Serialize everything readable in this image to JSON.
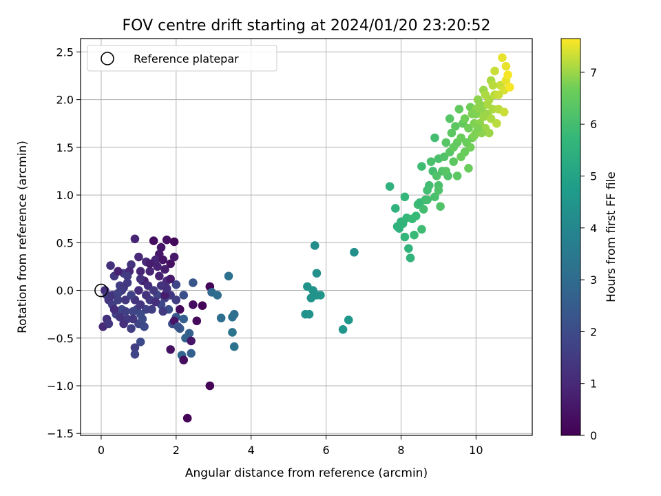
{
  "chart_data": {
    "type": "scatter",
    "title": "FOV centre drift starting at 2024/01/20 23:20:52",
    "xlabel": "Angular distance from reference (arcmin)",
    "ylabel": "Rotation from reference (arcmin)",
    "xlim": [
      -0.55,
      11.5
    ],
    "ylim": [
      -1.52,
      2.64
    ],
    "xticks": [
      0,
      2,
      4,
      6,
      8,
      10
    ],
    "xtick_labels": [
      "0",
      "2",
      "4",
      "6",
      "8",
      "10"
    ],
    "yticks": [
      -1.5,
      -1.0,
      -0.5,
      0.0,
      0.5,
      1.0,
      1.5,
      2.0,
      2.5
    ],
    "ytick_labels": [
      "−1.5",
      "−1.0",
      "−0.5",
      "0.0",
      "0.5",
      "1.0",
      "1.5",
      "2.0",
      "2.5"
    ],
    "grid": true,
    "legend": {
      "placement": "upper-left",
      "entries": [
        "Reference platepar"
      ]
    },
    "reference_point": {
      "x": 0.0,
      "y": 0.0
    },
    "colorbar": {
      "label": "Hours from first FF file",
      "range": [
        0,
        7.65
      ],
      "ticks": [
        0,
        1,
        2,
        3,
        4,
        5,
        6,
        7
      ],
      "tick_labels": [
        "0",
        "1",
        "2",
        "3",
        "4",
        "5",
        "6",
        "7"
      ],
      "colormap": "viridis"
    },
    "points": [
      [
        1.4,
        0.52,
        0.3
      ],
      [
        1.75,
        0.53,
        0.4
      ],
      [
        1.95,
        0.51,
        0.2
      ],
      [
        1.6,
        0.45,
        0.5
      ],
      [
        0.9,
        0.54,
        0.9
      ],
      [
        1.0,
        0.35,
        1.0
      ],
      [
        1.55,
        0.38,
        0.6
      ],
      [
        1.7,
        0.22,
        0.7
      ],
      [
        1.85,
        0.28,
        0.4
      ],
      [
        1.45,
        0.32,
        0.9
      ],
      [
        1.2,
        0.3,
        1.0
      ],
      [
        0.8,
        0.27,
        1.3
      ],
      [
        0.6,
        0.18,
        1.5
      ],
      [
        0.35,
        0.15,
        1.4
      ],
      [
        0.5,
        0.05,
        1.6
      ],
      [
        0.7,
        0.08,
        1.5
      ],
      [
        1.1,
        0.1,
        1.2
      ],
      [
        1.3,
        0.2,
        0.9
      ],
      [
        1.55,
        0.15,
        0.8
      ],
      [
        1.75,
        0.1,
        1.0
      ],
      [
        2.0,
        0.06,
        1.8
      ],
      [
        2.2,
        -0.05,
        2.1
      ],
      [
        2.45,
        0.08,
        2.3
      ],
      [
        0.1,
        0.0,
        1.1
      ],
      [
        0.2,
        -0.1,
        1.3
      ],
      [
        0.3,
        -0.15,
        1.6
      ],
      [
        0.15,
        -0.3,
        1.2
      ],
      [
        0.05,
        -0.38,
        1.0
      ],
      [
        0.2,
        -0.35,
        1.4
      ],
      [
        0.4,
        -0.25,
        1.7
      ],
      [
        0.55,
        -0.2,
        1.9
      ],
      [
        0.7,
        -0.3,
        1.5
      ],
      [
        0.6,
        -0.35,
        1.2
      ],
      [
        0.8,
        -0.4,
        1.6
      ],
      [
        1.0,
        -0.35,
        1.8
      ],
      [
        1.1,
        -0.3,
        2.0
      ],
      [
        1.2,
        -0.2,
        1.7
      ],
      [
        0.9,
        -0.1,
        1.3
      ],
      [
        1.0,
        0.0,
        1.1
      ],
      [
        1.3,
        -0.1,
        1.5
      ],
      [
        1.5,
        -0.05,
        1.8
      ],
      [
        1.6,
        -0.15,
        1.9
      ],
      [
        1.8,
        -0.2,
        2.1
      ],
      [
        1.9,
        -0.35,
        2.0
      ],
      [
        2.0,
        -0.28,
        2.4
      ],
      [
        2.1,
        -0.4,
        2.5
      ],
      [
        2.2,
        -0.3,
        2.6
      ],
      [
        2.35,
        -0.45,
        2.6
      ],
      [
        2.25,
        -0.5,
        2.7
      ],
      [
        2.4,
        -0.53,
        0.5
      ],
      [
        2.4,
        -0.66,
        2.6
      ],
      [
        2.15,
        -0.68,
        2.8
      ],
      [
        2.2,
        -0.73,
        0.3
      ],
      [
        1.85,
        -0.62,
        0.4
      ],
      [
        0.9,
        -0.6,
        1.6
      ],
      [
        0.9,
        -0.67,
        1.8
      ],
      [
        1.05,
        -0.54,
        1.9
      ],
      [
        1.95,
        -0.32,
        0.5
      ],
      [
        2.1,
        -0.2,
        0.2
      ],
      [
        2.45,
        -0.15,
        0.3
      ],
      [
        2.7,
        -0.16,
        0.1
      ],
      [
        2.55,
        -0.32,
        0.2
      ],
      [
        2.9,
        0.04,
        0.1
      ],
      [
        2.95,
        -0.02,
        2.9
      ],
      [
        3.1,
        -0.05,
        3.0
      ],
      [
        3.2,
        -0.29,
        3.1
      ],
      [
        3.4,
        0.15,
        3.2
      ],
      [
        3.5,
        -0.44,
        3.3
      ],
      [
        3.55,
        -0.25,
        3.1
      ],
      [
        3.5,
        -0.28,
        3.2
      ],
      [
        3.55,
        -0.59,
        3.3
      ],
      [
        2.9,
        -1.0,
        0.1
      ],
      [
        2.3,
        -1.34,
        0.1
      ],
      [
        0.25,
        0.26,
        1.2
      ],
      [
        0.45,
        0.2,
        0.8
      ],
      [
        0.6,
        0.03,
        1.4
      ],
      [
        0.75,
        0.2,
        1.0
      ],
      [
        1.05,
        0.2,
        0.9
      ],
      [
        1.15,
        0.1,
        0.7
      ],
      [
        1.25,
        0.05,
        1.1
      ],
      [
        1.4,
        0.0,
        1.4
      ],
      [
        1.6,
        0.05,
        1.3
      ],
      [
        1.85,
        -0.05,
        1.4
      ],
      [
        0.15,
        -0.05,
        1.5
      ],
      [
        0.3,
        -0.05,
        1.3
      ],
      [
        0.45,
        -0.1,
        1.6
      ],
      [
        0.55,
        0.0,
        1.5
      ],
      [
        0.65,
        -0.1,
        1.4
      ],
      [
        0.8,
        -0.05,
        1.7
      ],
      [
        0.95,
        -0.2,
        1.6
      ],
      [
        1.05,
        -0.15,
        1.4
      ],
      [
        1.2,
        -0.05,
        1.3
      ],
      [
        1.35,
        -0.2,
        1.6
      ],
      [
        1.45,
        -0.12,
        1.2
      ],
      [
        1.65,
        -0.22,
        1.5
      ],
      [
        1.7,
        -0.08,
        1.7
      ],
      [
        0.35,
        -0.2,
        1.1
      ],
      [
        0.5,
        -0.28,
        1.3
      ],
      [
        0.65,
        -0.22,
        1.6
      ],
      [
        0.85,
        -0.22,
        1.8
      ],
      [
        1.05,
        -0.25,
        2.0
      ],
      [
        1.15,
        -0.38,
        1.9
      ],
      [
        0.85,
        -0.3,
        1.4
      ],
      [
        1.7,
        -0.05,
        0.7
      ],
      [
        1.85,
        0.12,
        0.6
      ],
      [
        1.3,
        0.28,
        0.7
      ],
      [
        1.5,
        0.25,
        0.8
      ],
      [
        1.95,
        0.35,
        0.6
      ],
      [
        1.65,
        0.32,
        0.5
      ],
      [
        1.75,
        0.02,
        1.2
      ],
      [
        2.0,
        -0.1,
        1.6
      ],
      [
        2.05,
        -0.38,
        2.2
      ],
      [
        1.05,
        0.12,
        1.2
      ],
      [
        0.7,
        0.15,
        1.5
      ],
      [
        0.45,
        -0.03,
        1.7
      ],
      [
        5.7,
        0.47,
        4.2
      ],
      [
        5.75,
        0.18,
        4.3
      ],
      [
        6.75,
        0.4,
        4.3
      ],
      [
        5.5,
        0.04,
        4.4
      ],
      [
        5.65,
        0.0,
        4.4
      ],
      [
        5.6,
        -0.08,
        4.4
      ],
      [
        5.85,
        -0.05,
        4.5
      ],
      [
        5.75,
        -0.05,
        4.4
      ],
      [
        5.45,
        -0.25,
        4.4
      ],
      [
        5.55,
        -0.25,
        4.4
      ],
      [
        6.6,
        -0.31,
        4.5
      ],
      [
        6.45,
        -0.41,
        4.5
      ],
      [
        7.7,
        1.09,
        5.5
      ],
      [
        7.85,
        0.86,
        5.5
      ],
      [
        7.9,
        0.67,
        5.5
      ],
      [
        7.95,
        0.65,
        5.5
      ],
      [
        8.0,
        0.72,
        5.6
      ],
      [
        8.05,
        0.7,
        5.6
      ],
      [
        8.1,
        0.98,
        5.7
      ],
      [
        8.15,
        0.76,
        5.7
      ],
      [
        8.1,
        0.56,
        5.7
      ],
      [
        8.2,
        0.44,
        5.6
      ],
      [
        8.25,
        0.34,
        5.6
      ],
      [
        8.3,
        0.75,
        5.8
      ],
      [
        8.35,
        0.58,
        5.8
      ],
      [
        8.45,
        0.9,
        5.9
      ],
      [
        8.5,
        0.92,
        5.8
      ],
      [
        8.55,
        0.64,
        5.9
      ],
      [
        8.55,
        1.3,
        5.9
      ],
      [
        8.6,
        0.85,
        6.0
      ],
      [
        8.65,
        0.95,
        5.9
      ],
      [
        8.7,
        1.05,
        6.0
      ],
      [
        8.75,
        1.1,
        6.0
      ],
      [
        8.8,
        1.35,
        6.1
      ],
      [
        8.9,
        1.6,
        6.0
      ],
      [
        8.85,
        1.25,
        6.0
      ],
      [
        8.9,
        0.98,
        6.1
      ],
      [
        8.95,
        1.2,
        6.2
      ],
      [
        9.0,
        1.38,
        6.1
      ],
      [
        9.0,
        1.1,
        6.1
      ],
      [
        9.05,
        0.88,
        6.2
      ],
      [
        9.1,
        1.25,
        6.2
      ],
      [
        9.15,
        1.4,
        6.2
      ],
      [
        9.2,
        1.55,
        6.3
      ],
      [
        9.25,
        1.2,
        6.2
      ],
      [
        9.3,
        1.45,
        6.3
      ],
      [
        9.3,
        1.8,
        6.3
      ],
      [
        9.35,
        1.65,
        6.4
      ],
      [
        9.4,
        1.35,
        6.4
      ],
      [
        9.4,
        1.5,
        6.5
      ],
      [
        9.45,
        1.72,
        6.4
      ],
      [
        9.5,
        1.2,
        6.4
      ],
      [
        9.5,
        1.55,
        6.5
      ],
      [
        9.55,
        1.9,
        6.5
      ],
      [
        9.6,
        1.6,
        6.6
      ],
      [
        9.65,
        1.75,
        6.5
      ],
      [
        9.7,
        1.45,
        6.6
      ],
      [
        9.75,
        1.55,
        6.6
      ],
      [
        9.8,
        1.7,
        6.7
      ],
      [
        9.8,
        1.28,
        6.6
      ],
      [
        9.85,
        1.92,
        6.7
      ],
      [
        9.9,
        1.6,
        6.7
      ],
      [
        9.95,
        1.75,
        6.8
      ],
      [
        10.0,
        1.85,
        6.8
      ],
      [
        10.0,
        1.65,
        6.8
      ],
      [
        10.05,
        2.0,
        6.9
      ],
      [
        10.1,
        1.75,
        6.9
      ],
      [
        10.15,
        1.9,
        6.9
      ],
      [
        10.2,
        2.1,
        7.0
      ],
      [
        10.25,
        1.7,
        7.0
      ],
      [
        10.3,
        1.85,
        7.0
      ],
      [
        10.35,
        2.0,
        7.1
      ],
      [
        10.4,
        2.2,
        7.1
      ],
      [
        10.45,
        1.9,
        7.1
      ],
      [
        10.5,
        2.05,
        7.2
      ],
      [
        10.55,
        1.75,
        7.2
      ],
      [
        10.5,
        2.3,
        7.3
      ],
      [
        10.6,
        1.9,
        7.2
      ],
      [
        10.65,
        2.15,
        7.3
      ],
      [
        10.7,
        2.44,
        7.5
      ],
      [
        10.75,
        2.1,
        7.4
      ],
      [
        10.75,
        1.87,
        7.3
      ],
      [
        10.8,
        2.2,
        7.5
      ],
      [
        10.8,
        2.35,
        7.5
      ],
      [
        10.85,
        2.26,
        7.6
      ],
      [
        10.9,
        2.13,
        7.6
      ],
      [
        10.3,
        1.95,
        7.1
      ],
      [
        10.1,
        1.95,
        6.9
      ],
      [
        10.2,
        1.82,
        7.0
      ],
      [
        10.0,
        1.9,
        6.9
      ],
      [
        9.9,
        1.85,
        6.8
      ],
      [
        9.7,
        1.8,
        6.7
      ],
      [
        10.4,
        1.8,
        7.1
      ],
      [
        10.35,
        1.65,
        7.0
      ],
      [
        10.6,
        2.05,
        7.3
      ],
      [
        10.45,
        2.15,
        7.2
      ],
      [
        10.25,
        2.05,
        7.1
      ],
      [
        10.15,
        1.65,
        6.9
      ],
      [
        10.05,
        1.7,
        6.8
      ],
      [
        9.95,
        1.62,
        6.8
      ],
      [
        9.85,
        1.5,
        6.7
      ],
      [
        9.6,
        1.4,
        6.6
      ],
      [
        9.2,
        1.25,
        6.3
      ],
      [
        9.0,
        1.05,
        6.2
      ],
      [
        8.7,
        0.95,
        6.0
      ],
      [
        8.4,
        0.78,
        5.8
      ]
    ]
  }
}
